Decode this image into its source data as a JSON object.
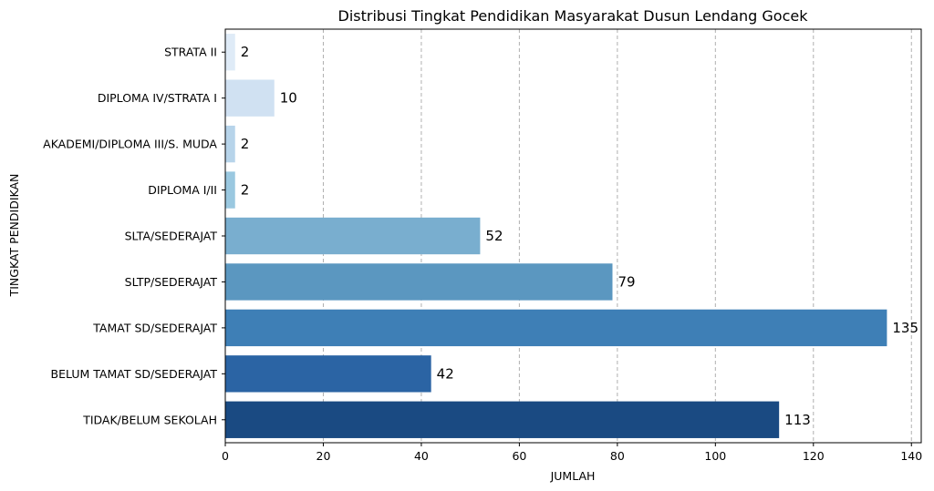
{
  "chart_data": {
    "type": "bar",
    "orientation": "horizontal",
    "title": "Distribusi Tingkat Pendidikan Masyarakat Dusun Lendang Gocek",
    "xlabel": "JUMLAH",
    "ylabel": "TINGKAT PENDIDIKAN",
    "categories": [
      "STRATA II",
      "DIPLOMA IV/STRATA I",
      "AKADEMI/DIPLOMA III/S. MUDA",
      "DIPLOMA I/II",
      "SLTA/SEDERAJAT",
      "SLTP/SEDERAJAT",
      "TAMAT SD/SEDERAJAT",
      "BELUM TAMAT SD/SEDERAJAT",
      "TIDAK/BELUM SEKOLAH"
    ],
    "values": [
      2,
      10,
      2,
      2,
      52,
      79,
      135,
      42,
      113
    ],
    "data_labels": [
      "2",
      "10",
      "2",
      "2",
      "52",
      "79",
      "135",
      "42",
      "113"
    ],
    "colors": [
      "#dfebf7",
      "#d0e1f2",
      "#b7d4ea",
      "#9ac8e0",
      "#79aecf",
      "#5b97c0",
      "#3e7fb6",
      "#2b64a4",
      "#1a4a82"
    ],
    "xlim": [
      0,
      142
    ],
    "xticks": [
      0,
      20,
      40,
      60,
      80,
      100,
      120,
      140
    ],
    "xtick_labels": [
      "0",
      "20",
      "40",
      "60",
      "80",
      "100",
      "120",
      "140"
    ],
    "grid": "x-dashed",
    "palette": "Blues"
  }
}
